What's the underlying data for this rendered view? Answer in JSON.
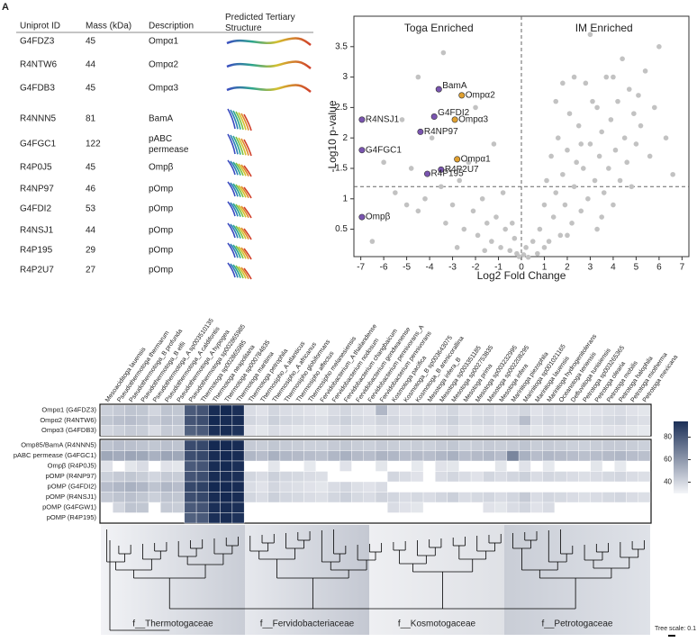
{
  "panel_label": "A",
  "table": {
    "header": [
      "Uniprot ID",
      "Mass (kDa)",
      "Description",
      "Predicted Tertiary Structure"
    ],
    "rows": [
      [
        "G4FDZ3",
        45,
        "Ompα1"
      ],
      [
        "R4NTW6",
        44,
        "Ompα2"
      ],
      [
        "G4FDB3",
        45,
        "Ompα3"
      ],
      [
        "R4NNN5",
        81,
        "BamA"
      ],
      [
        "G4FGC1",
        122,
        "pABC permease"
      ],
      [
        "R4P0J5",
        45,
        "Ompβ"
      ],
      [
        "R4NP97",
        46,
        "pOmp"
      ],
      [
        "G4FDI2",
        53,
        "pOmp"
      ],
      [
        "R4NSJ1",
        44,
        "pOmp"
      ],
      [
        "R4P195",
        29,
        "pOmp"
      ],
      [
        "R4P2U7",
        27,
        "pOmp"
      ]
    ]
  },
  "chart_data": [
    {
      "type": "scatter",
      "x_label": "Log2 Fold Change",
      "y_label": "-Log10 p-value",
      "annotations": [
        "Toga Enriched",
        "IM Enriched"
      ],
      "xlim": [
        -7.3,
        7.3
      ],
      "ylim": [
        0.05,
        4.0
      ],
      "xticks": [
        -7,
        -6,
        -5,
        -4,
        -3,
        -2,
        -1,
        0,
        1,
        2,
        3,
        4,
        5,
        6,
        7
      ],
      "yticks": [
        0.5,
        1,
        1.5,
        2,
        2.5,
        3,
        3.5
      ],
      "threshold_x": 0,
      "threshold_y": 1.2,
      "color": "#c2c2c2",
      "x": [
        -6.5,
        -5.5,
        -5,
        -4.8,
        -4.5,
        -4.2,
        -3.9,
        -3.5,
        -3.3,
        -3.0,
        -2.7,
        -2.5,
        -2.3,
        -2.1,
        -1.9,
        -1.7,
        -1.5,
        -1.3,
        -1.1,
        -0.9,
        -0.7,
        -0.5,
        -0.3,
        -0.2,
        -0.1,
        0.1,
        0.2,
        0.3,
        0.5,
        0.7,
        -5.2,
        -4.5,
        -6.0,
        -1.2,
        -2.0,
        -3.4,
        -1.6,
        -2.8,
        -0.4,
        -0.8,
        0.8,
        1.0,
        1.1,
        1.2,
        1.3,
        1.4,
        1.5,
        1.6,
        1.7,
        1.8,
        1.9,
        2.0,
        2.1,
        2.2,
        2.3,
        2.4,
        2.5,
        2.6,
        2.7,
        2.8,
        2.9,
        3.0,
        3.1,
        3.2,
        3.3,
        3.4,
        3.5,
        3.6,
        3.7,
        3.8,
        3.9,
        4.0,
        4.1,
        4.2,
        4.3,
        4.4,
        4.5,
        4.6,
        4.7,
        4.8,
        4.9,
        5.0,
        5.2,
        5.4,
        5.6,
        5.8,
        6.0,
        6.3,
        6.6,
        1.5,
        2.3,
        3.0,
        1.0,
        2.0,
        3.5,
        2.6,
        1.8,
        3.3,
        4.0,
        5.1
      ],
      "y": [
        0.3,
        1.1,
        0.9,
        1.5,
        0.8,
        1.0,
        2.0,
        1.2,
        0.6,
        0.9,
        1.3,
        0.5,
        1.6,
        0.8,
        0.4,
        1.0,
        0.6,
        0.3,
        0.7,
        0.2,
        0.5,
        0.15,
        0.35,
        0.1,
        0.05,
        0.08,
        0.2,
        0.04,
        0.3,
        0.1,
        2.3,
        3.0,
        1.6,
        1.9,
        2.5,
        3.4,
        0.15,
        0.2,
        0.6,
        1.1,
        0.5,
        0.9,
        1.3,
        0.3,
        1.7,
        0.7,
        1.1,
        2.0,
        0.4,
        1.4,
        0.9,
        1.8,
        2.4,
        0.6,
        1.2,
        1.6,
        2.2,
        0.8,
        1.5,
        2.9,
        1.0,
        1.9,
        2.6,
        1.3,
        0.5,
        1.7,
        2.1,
        1.1,
        3.0,
        1.5,
        2.3,
        0.9,
        1.8,
        2.6,
        1.3,
        3.3,
        2.0,
        1.6,
        2.8,
        1.2,
        2.4,
        1.9,
        2.2,
        3.1,
        1.7,
        2.5,
        3.5,
        2.0,
        1.4,
        2.6,
        3.0,
        3.7,
        0.2,
        0.4,
        0.7,
        1.9,
        2.9,
        2.5,
        3.0,
        2.7
      ],
      "highlighted": [
        {
          "label": "BamA",
          "x": -3.6,
          "y": 2.8,
          "color": "#7a55b0"
        },
        {
          "label": "Ompα2",
          "x": -2.6,
          "y": 2.7,
          "color": "#e0a030"
        },
        {
          "label": "G4FDI2",
          "x": -3.8,
          "y": 2.35,
          "color": "#7a55b0"
        },
        {
          "label": "Ompα3",
          "x": -2.9,
          "y": 2.3,
          "color": "#e0a030"
        },
        {
          "label": "R4NSJ1",
          "x": -6.95,
          "y": 2.3,
          "color": "#7a55b0"
        },
        {
          "label": "R4NP97",
          "x": -4.4,
          "y": 2.1,
          "color": "#7a55b0"
        },
        {
          "label": "G4FGC1",
          "x": -6.95,
          "y": 1.8,
          "color": "#7a55b0"
        },
        {
          "label": "Ompα1",
          "x": -2.8,
          "y": 1.65,
          "color": "#e0a030"
        },
        {
          "label": "R4P2U7",
          "x": -3.5,
          "y": 1.48,
          "color": "#7a55b0"
        },
        {
          "label": "R4P195",
          "x": -4.1,
          "y": 1.41,
          "color": "#7a55b0"
        },
        {
          "label": "Ompβ",
          "x": -6.95,
          "y": 0.7,
          "color": "#7a55b0"
        }
      ]
    },
    {
      "type": "heatmap",
      "columns": [
        "Mesoaciditoga lauensis",
        "Pseudothermotoga thermarum",
        "Pseudothermotoga_B profunda",
        "Pseudothermotoga_B elfii",
        "Pseudothermotoga_A sp003510135",
        "Pseudothermotoga_A caldifontis",
        "Pseudothermotoga_A hypogea",
        "Pseudothermotoga sp002865985",
        "Thermotoga sp002865985",
        "Thermotoga neapolitana",
        "Thermotoga sp000784835",
        "Thermotoga maritima",
        "Thermotoga petrophila",
        "Thermosipho_A atlanticus",
        "Thermosipho_A africanus",
        "Thermosipho globiformans",
        "Thermosipho affectus",
        "Thermosipho melanesiensis",
        "Fervidobacterium_A thailandense",
        "Fervidobacterium nodosum",
        "Fervidobacterium changbaicum",
        "Fervidobacterium gondwanense",
        "Fervidobacterium pennivorans_A",
        "Fervidobacterium pennivorans",
        "Kosmotoga pacifica",
        "Kosmotoga_B sp003643075",
        "Kosmotoga_B arenicorallina",
        "Mesotoga infera_B",
        "Mesotoga sp003351185",
        "Mesotoga sp002753835",
        "Mesotoga prima",
        "Mesotoga sp003232995",
        "Mesotoga sp002208295",
        "Mesotoga infera",
        "Marinitoga piezophila",
        "Marinitoga sp001021165",
        "Marinitoga lauensis",
        "Marinitoga hydrogenitolerans",
        "Oceanotoga teriensis",
        "Defluviitoga tunisiensis",
        "Petrotoga sp003265365",
        "Petrotoga olearia",
        "Petrotoga mobilis",
        "Petrotoga halophila",
        "Petrotoga miotherma",
        "Petrotoga mexicana"
      ],
      "rows": [
        "Ompα1 (G4FDZ3)",
        "Ompα2 (R4NTW6)",
        "Ompα3 (G4FDB3)",
        "Omp85/BamA (R4NNN5)",
        "pABC permease (G4FGC1)",
        "Ompβ (R4P0J5)",
        "pOMP (R4NP97)",
        "pOMP (G4FDI2)",
        "pOMP (R4NSJ1)",
        "pOMP (G4FGW1)",
        "pOMP (R4P195)"
      ],
      "groups": [
        3,
        8
      ],
      "clim": [
        30,
        94
      ],
      "cbar_ticks": [
        40,
        60,
        80
      ],
      "values": [
        [
          42,
          44,
          46,
          45,
          40,
          46,
          45,
          80,
          82,
          95,
          96,
          94,
          38,
          36,
          40,
          38,
          37,
          36,
          35,
          38,
          40,
          37,
          36,
          50,
          38,
          36,
          37,
          36,
          38,
          40,
          36,
          37,
          38,
          36,
          38,
          40,
          36,
          38,
          37,
          36,
          35,
          36,
          37,
          38,
          36,
          35
        ],
        [
          45,
          47,
          48,
          46,
          44,
          47,
          46,
          82,
          84,
          96,
          95,
          95,
          40,
          38,
          42,
          40,
          39,
          38,
          37,
          40,
          42,
          39,
          38,
          41,
          40,
          38,
          39,
          38,
          40,
          42,
          38,
          39,
          40,
          38,
          40,
          48,
          38,
          40,
          39,
          38,
          37,
          38,
          39,
          40,
          38,
          37
        ],
        [
          40,
          42,
          44,
          43,
          38,
          44,
          43,
          78,
          80,
          94,
          95,
          93,
          36,
          35,
          38,
          36,
          35,
          35,
          34,
          36,
          38,
          35,
          35,
          37,
          36,
          35,
          35,
          34,
          36,
          38,
          35,
          35,
          36,
          35,
          36,
          38,
          35,
          36,
          35,
          35,
          34,
          35,
          36,
          36,
          35,
          34
        ],
        [
          46,
          48,
          47,
          46,
          45,
          47,
          46,
          85,
          86,
          96,
          96,
          95,
          44,
          43,
          45,
          44,
          43,
          42,
          42,
          44,
          45,
          43,
          42,
          44,
          43,
          42,
          43,
          42,
          44,
          45,
          42,
          43,
          44,
          43,
          44,
          46,
          43,
          44,
          43,
          42,
          42,
          43,
          44,
          44,
          43,
          42
        ],
        [
          55,
          54,
          56,
          55,
          52,
          56,
          55,
          84,
          86,
          95,
          96,
          95,
          50,
          48,
          52,
          50,
          49,
          48,
          47,
          50,
          52,
          49,
          48,
          51,
          50,
          48,
          49,
          48,
          50,
          52,
          48,
          49,
          50,
          48,
          66,
          52,
          48,
          50,
          49,
          48,
          47,
          48,
          49,
          50,
          48,
          47
        ],
        [
          36,
          null,
          35,
          38,
          null,
          36,
          35,
          80,
          82,
          95,
          96,
          94,
          null,
          null,
          35,
          null,
          null,
          34,
          null,
          null,
          36,
          null,
          null,
          35,
          null,
          null,
          34,
          null,
          36,
          35,
          null,
          null,
          null,
          35,
          null,
          36,
          null,
          34,
          null,
          null,
          null,
          35,
          null,
          34,
          null,
          null
        ],
        [
          42,
          44,
          45,
          43,
          40,
          44,
          43,
          82,
          84,
          95,
          95,
          94,
          40,
          38,
          42,
          40,
          39,
          38,
          37,
          null,
          null,
          null,
          null,
          null,
          40,
          38,
          36,
          null,
          38,
          40,
          38,
          36,
          40,
          38,
          40,
          42,
          38,
          40,
          39,
          38,
          37,
          38,
          39,
          40,
          38,
          37
        ],
        [
          48,
          50,
          52,
          50,
          46,
          50,
          48,
          86,
          88,
          96,
          96,
          95,
          38,
          36,
          40,
          38,
          37,
          36,
          35,
          38,
          40,
          37,
          36,
          38,
          null,
          null,
          null,
          null,
          null,
          null,
          null,
          null,
          null,
          null,
          null,
          null,
          null,
          null,
          null,
          null,
          null,
          null,
          null,
          null,
          null,
          null
        ],
        [
          44,
          46,
          47,
          45,
          42,
          46,
          45,
          84,
          86,
          95,
          96,
          95,
          40,
          38,
          42,
          40,
          39,
          38,
          37,
          40,
          42,
          39,
          38,
          41,
          40,
          38,
          39,
          38,
          40,
          42,
          38,
          39,
          40,
          38,
          40,
          44,
          38,
          40,
          39,
          38,
          37,
          38,
          39,
          40,
          38,
          37
        ],
        [
          null,
          40,
          46,
          45,
          null,
          44,
          43,
          80,
          82,
          94,
          95,
          94,
          null,
          null,
          null,
          null,
          null,
          null,
          null,
          null,
          null,
          null,
          null,
          null,
          38,
          36,
          35,
          null,
          null,
          null,
          null,
          null,
          36,
          35,
          38,
          40,
          36,
          38,
          null,
          null,
          null,
          null,
          null,
          null,
          null,
          null
        ],
        [
          null,
          null,
          null,
          null,
          null,
          null,
          null,
          78,
          80,
          94,
          95,
          93,
          null,
          null,
          null,
          null,
          null,
          null,
          null,
          null,
          null,
          null,
          null,
          null,
          null,
          null,
          null,
          null,
          null,
          null,
          null,
          null,
          null,
          null,
          null,
          null,
          null,
          null,
          null,
          null,
          null,
          null,
          null,
          null,
          null,
          null
        ]
      ],
      "families": [
        "f__Thermotogaceae",
        "f__Fervidobacteriaceae",
        "f__Kosmotogaceae",
        "f__Petrotogaceae"
      ],
      "tree_scale": "Tree scale: 0.1"
    }
  ]
}
